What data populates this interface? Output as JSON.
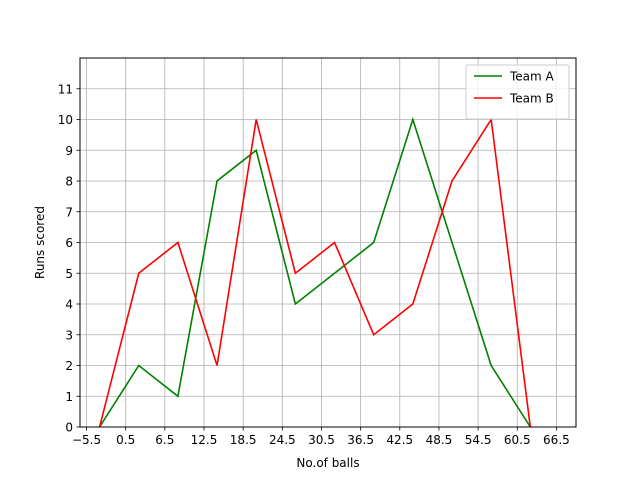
{
  "chart_data": {
    "type": "line",
    "title": "",
    "xlabel": "No.of balls",
    "ylabel": "Runs scored",
    "xlim": [
      -6.5,
      69.5
    ],
    "ylim": [
      0,
      12
    ],
    "xticks": [
      -5.5,
      0.5,
      6.5,
      12.5,
      18.5,
      24.5,
      30.5,
      36.5,
      42.5,
      48.5,
      54.5,
      60.5,
      66.5
    ],
    "xtick_labels": [
      "−5.5",
      "0.5",
      "6.5",
      "12.5",
      "18.5",
      "24.5",
      "30.5",
      "36.5",
      "42.5",
      "48.5",
      "54.5",
      "60.5",
      "66.5"
    ],
    "yticks": [
      0,
      1,
      2,
      3,
      4,
      5,
      6,
      7,
      8,
      9,
      10,
      11
    ],
    "ytick_labels": [
      "0",
      "1",
      "2",
      "3",
      "4",
      "5",
      "6",
      "7",
      "8",
      "9",
      "10",
      "11"
    ],
    "grid": true,
    "legend_position": "top-right",
    "series": [
      {
        "name": "Team A",
        "color": "#008000",
        "x": [
          -3.5,
          2.5,
          8.5,
          14.5,
          20.5,
          26.5,
          32.5,
          38.5,
          44.5,
          50.5,
          56.5,
          62.5
        ],
        "y": [
          0,
          2,
          1,
          8,
          9,
          4,
          5,
          6,
          10,
          6,
          2,
          0
        ]
      },
      {
        "name": "Team B",
        "color": "#ff0000",
        "x": [
          -3.5,
          2.5,
          8.5,
          14.5,
          20.5,
          26.5,
          32.5,
          38.5,
          44.5,
          50.5,
          56.5,
          62.5
        ],
        "y": [
          0,
          5,
          6,
          2,
          10,
          5,
          6,
          3,
          4,
          8,
          10,
          0
        ]
      }
    ]
  }
}
